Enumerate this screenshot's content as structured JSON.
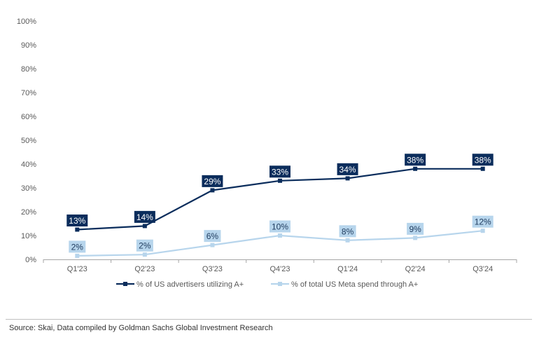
{
  "chart_data": {
    "type": "line",
    "categories": [
      "Q1'23",
      "Q2'23",
      "Q3'23",
      "Q4'23",
      "Q1'24",
      "Q2'24",
      "Q3'24"
    ],
    "series": [
      {
        "name": "% of US advertisers utilizing A+",
        "values": [
          12.5,
          14,
          29,
          33,
          34,
          38,
          38
        ],
        "labels": [
          "13%",
          "14%",
          "29%",
          "33%",
          "34%",
          "38%",
          "38%"
        ],
        "color": "#0b2d5c",
        "label_text_color": "#ffffff"
      },
      {
        "name": "% of total US Meta spend through A+",
        "values": [
          1.5,
          2,
          6,
          10,
          8,
          9,
          12
        ],
        "labels": [
          "2%",
          "2%",
          "6%",
          "10%",
          "8%",
          "9%",
          "12%"
        ],
        "color": "#b7d5ec",
        "label_text_color": "#1f3b5e"
      }
    ],
    "y_ticks": [
      "0%",
      "10%",
      "20%",
      "30%",
      "40%",
      "50%",
      "60%",
      "70%",
      "80%",
      "90%",
      "100%"
    ],
    "ylim": [
      0,
      100
    ],
    "xlabel": "",
    "ylabel": "",
    "title": "",
    "grid": false,
    "legend_position": "bottom"
  },
  "source": "Source: Skai, Data compiled by Goldman Sachs Global Investment Research"
}
